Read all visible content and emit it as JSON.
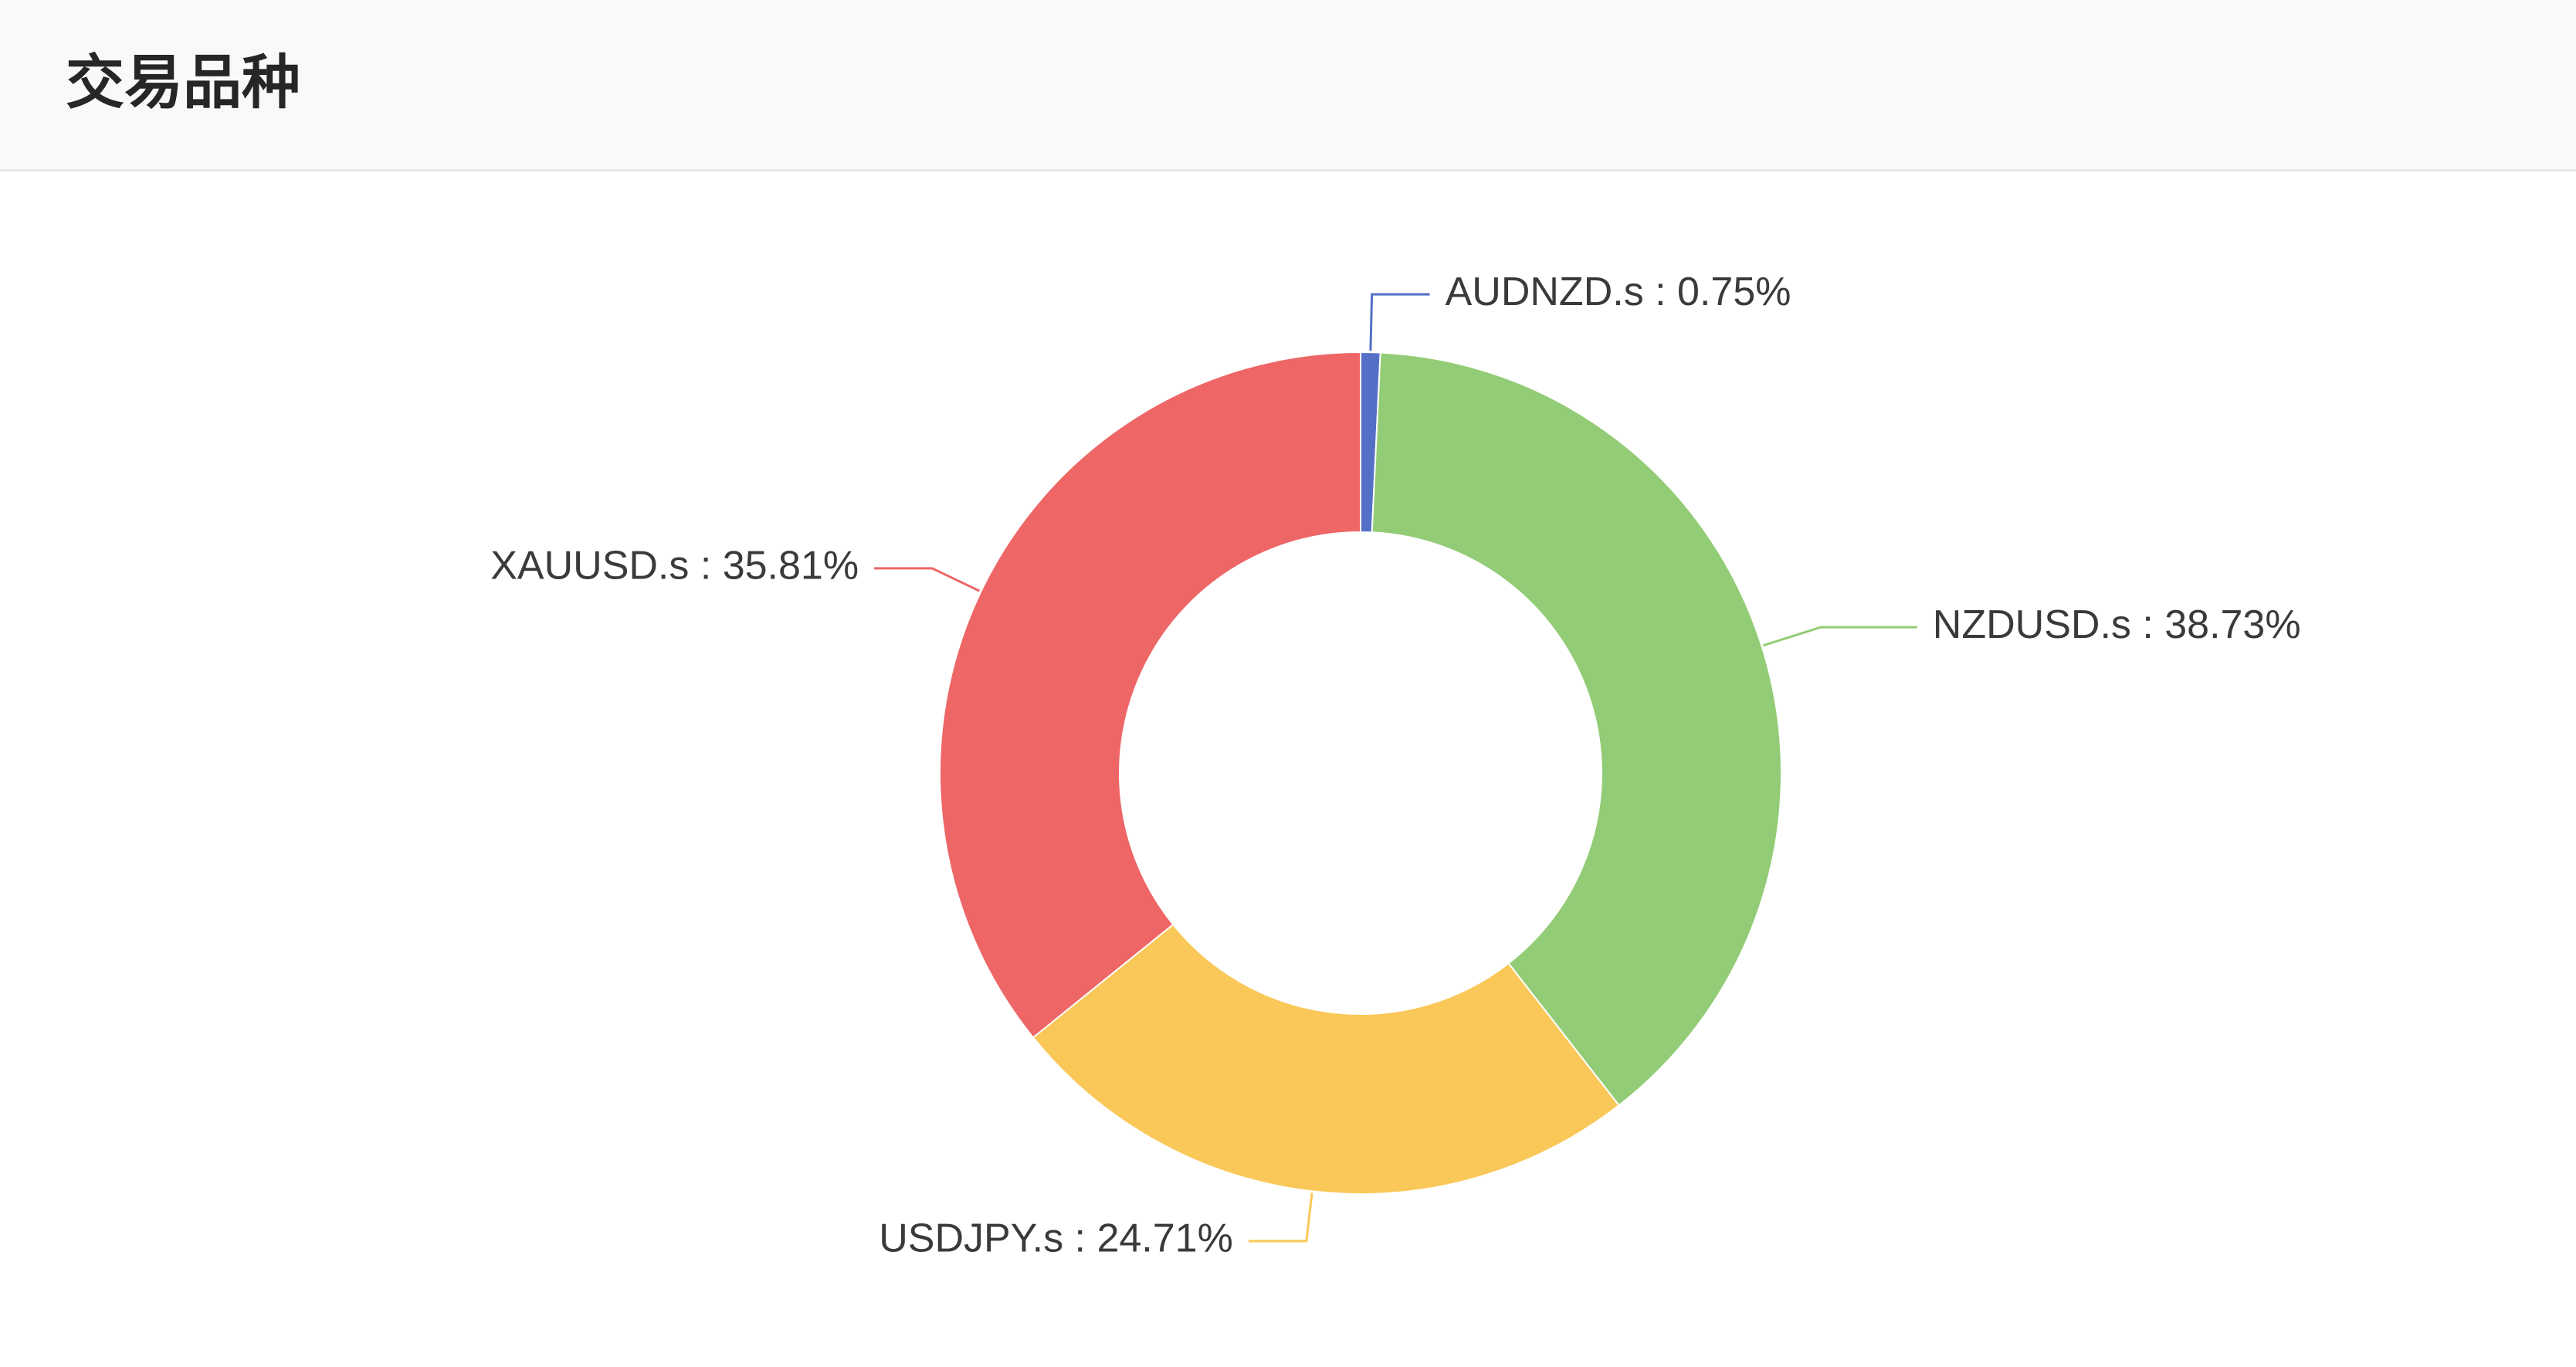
{
  "header": {
    "title": "交易品种"
  },
  "chart_data": {
    "type": "pie",
    "variant": "donut",
    "title": "",
    "slices": [
      {
        "name": "AUDNZD.s",
        "value": 0.75,
        "label": "AUDNZD.s : 0.75%",
        "color": "#5470c6"
      },
      {
        "name": "NZDUSD.s",
        "value": 38.73,
        "label": "NZDUSD.s : 38.73%",
        "color": "#93cc76"
      },
      {
        "name": "USDJPY.s",
        "value": 24.71,
        "label": "USDJPY.s : 24.71%",
        "color": "#fac858"
      },
      {
        "name": "XAUUSD.s",
        "value": 35.81,
        "label": "XAUUSD.s : 35.81%",
        "color": "#ee6666"
      }
    ],
    "start_angle": "top",
    "direction": "clockwise",
    "legend": "none",
    "labels": "outside-with-leader-lines"
  }
}
